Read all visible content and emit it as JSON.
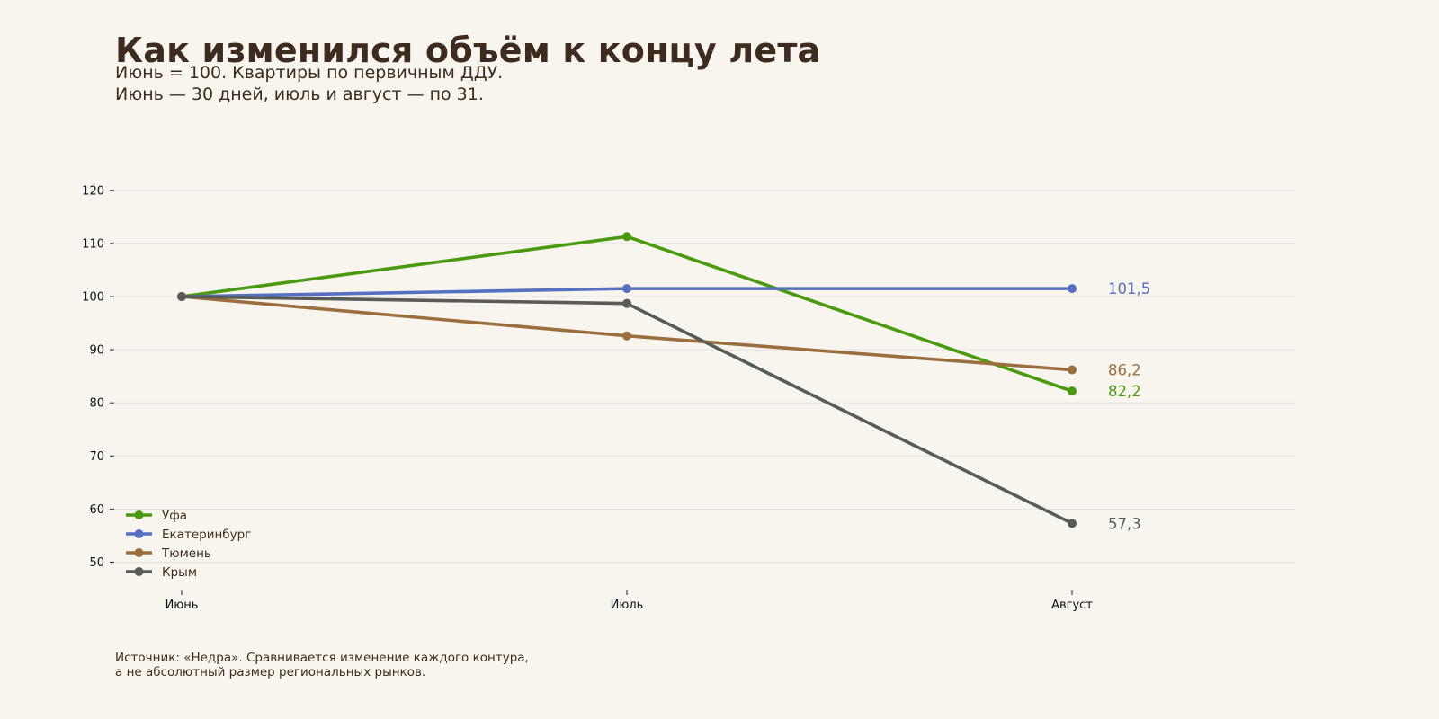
{
  "header": {
    "title": "Как изменился объём к концу лета",
    "subtitle_line1": "Июнь = 100. Квартиры по первичным ДДУ.",
    "subtitle_line2": "Июнь — 30 дней, июль и август — по 31."
  },
  "footer": {
    "note_line1": "Источник: «Недра». Сравнивается изменение каждого контура,",
    "note_line2": "а не абсолютный размер региональных рынков."
  },
  "chart_data": {
    "type": "line",
    "x": [
      "Июнь",
      "Июль",
      "Август"
    ],
    "ylim": [
      45,
      122
    ],
    "yticks": [
      50,
      60,
      70,
      80,
      90,
      100,
      110,
      120
    ],
    "grid": "horizontal",
    "legend_position": "bottom-left",
    "series": [
      {
        "name": "Уфа",
        "values": [
          100,
          111.3,
          82.2
        ],
        "color": "#4a9a0f",
        "end_label": "82,2"
      },
      {
        "name": "Екатеринбург",
        "values": [
          100,
          101.5,
          101.5
        ],
        "color": "#5570c0",
        "end_label": "101,5"
      },
      {
        "name": "Тюмень",
        "values": [
          100,
          92.6,
          86.2
        ],
        "color": "#9b6e3e",
        "end_label": "86,2"
      },
      {
        "name": "Крым",
        "values": [
          100,
          98.7,
          57.3
        ],
        "color": "#585c55",
        "end_label": "57,3"
      }
    ]
  }
}
